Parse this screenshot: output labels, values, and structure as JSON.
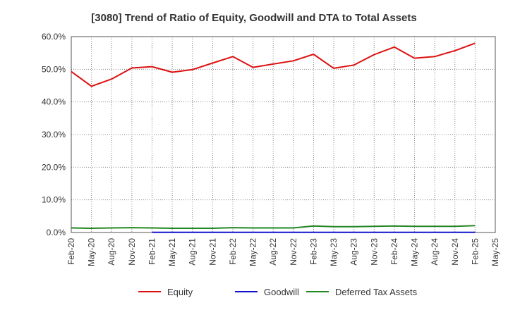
{
  "chart_data": {
    "type": "line",
    "title": "[3080]  Trend of Ratio of Equity, Goodwill and DTA to Total Assets",
    "xlabel": "",
    "ylabel": "",
    "ylim": [
      0,
      60
    ],
    "y_ticks": [
      0,
      10,
      20,
      30,
      40,
      50,
      60
    ],
    "y_tick_labels": [
      "0.0%",
      "10.0%",
      "20.0%",
      "30.0%",
      "40.0%",
      "50.0%",
      "60.0%"
    ],
    "x": [
      "Feb-20",
      "May-20",
      "Aug-20",
      "Nov-20",
      "Feb-21",
      "May-21",
      "Aug-21",
      "Nov-21",
      "Feb-22",
      "May-22",
      "Aug-22",
      "Nov-22",
      "Feb-23",
      "May-23",
      "Aug-23",
      "Nov-23",
      "Feb-24",
      "May-24",
      "Aug-24",
      "Nov-24",
      "Feb-25",
      "May-25"
    ],
    "grid": true,
    "legend_position": "bottom",
    "series": [
      {
        "name": "Equity",
        "color": "#dd1111",
        "values": [
          49.3,
          44.8,
          47.0,
          50.4,
          50.8,
          49.1,
          49.9,
          51.9,
          53.9,
          50.6,
          51.6,
          52.6,
          54.6,
          50.3,
          51.3,
          54.5,
          56.8,
          53.4,
          53.9,
          55.7,
          58.0,
          null
        ]
      },
      {
        "name": "Goodwill",
        "color": "#1111cc",
        "values": [
          null,
          null,
          null,
          null,
          0.05,
          0.05,
          0.05,
          0.05,
          0.05,
          0.05,
          0.05,
          0.05,
          0.05,
          0.05,
          0.05,
          0.05,
          0.05,
          0.05,
          0.05,
          0.05,
          0.05,
          null
        ]
      },
      {
        "name": "Deferred Tax Assets",
        "color": "#228822",
        "values": [
          1.4,
          1.3,
          1.4,
          1.5,
          1.4,
          1.3,
          1.3,
          1.3,
          1.5,
          1.4,
          1.4,
          1.4,
          2.0,
          1.8,
          1.8,
          1.9,
          2.0,
          1.9,
          1.9,
          1.9,
          2.1,
          null
        ]
      }
    ]
  }
}
